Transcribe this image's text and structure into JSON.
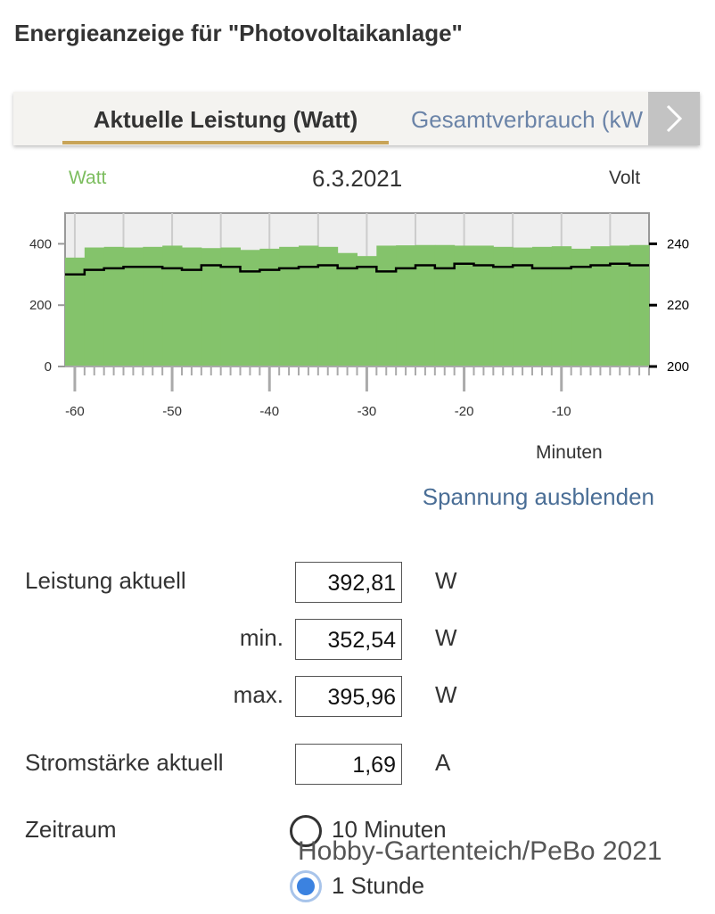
{
  "page_title": "Energieanzeige für \"Photovoltaikanlage\"",
  "tabs": [
    {
      "label": "Aktuelle Leistung (Watt)",
      "active": true
    },
    {
      "label": "Gesamtverbrauch (kW",
      "active": false
    }
  ],
  "tab_arrow_icon": "chevron-right-icon",
  "chart_header": {
    "left_label": "Watt",
    "date": "6.3.2021",
    "right_label": "Volt"
  },
  "chart_data": {
    "type": "bar",
    "x": [
      -60,
      -58,
      -56,
      -54,
      -52,
      -50,
      -48,
      -46,
      -44,
      -42,
      -40,
      -38,
      -36,
      -34,
      -32,
      -30,
      -28,
      -26,
      -24,
      -22,
      -20,
      -18,
      -16,
      -14,
      -12,
      -10,
      -8,
      -6,
      -4,
      -2
    ],
    "xlabel": "Minuten",
    "xlim": [
      -61,
      -1
    ],
    "xticks": [
      -60,
      -50,
      -40,
      -30,
      -20,
      -10
    ],
    "series": [
      {
        "name": "Watt",
        "axis": "left",
        "type": "bar",
        "values": [
          355,
          388,
          390,
          388,
          390,
          394,
          388,
          386,
          388,
          380,
          384,
          390,
          394,
          390,
          370,
          360,
          394,
          395,
          396,
          396,
          394,
          394,
          390,
          388,
          390,
          392,
          384,
          392,
          394,
          396
        ],
        "color": "#84c36b"
      },
      {
        "name": "Volt",
        "axis": "right",
        "type": "step",
        "values": [
          230.0,
          231.5,
          232.0,
          232.5,
          232.5,
          232.0,
          231.5,
          233.0,
          232.5,
          231.0,
          231.5,
          232.0,
          232.5,
          233.0,
          232.0,
          232.5,
          231.0,
          232.0,
          233.0,
          232.0,
          233.5,
          233.0,
          232.5,
          233.0,
          232.0,
          232.0,
          232.5,
          233.0,
          233.5,
          233.0
        ],
        "color": "#000000"
      }
    ],
    "y_left": {
      "lim": [
        0,
        500
      ],
      "ticks": [
        0,
        200,
        400
      ]
    },
    "y_right": {
      "lim": [
        200,
        250
      ],
      "ticks": [
        200,
        220,
        240
      ]
    },
    "grid": "vertical",
    "legend": "none"
  },
  "toggle_link": "Spannung ausblenden",
  "readings": [
    {
      "label": "Leistung aktuell",
      "value": "392,81",
      "unit": "W"
    },
    {
      "label": "min.",
      "value": "352,54",
      "unit": "W"
    },
    {
      "label": "max.",
      "value": "395,96",
      "unit": "W"
    },
    {
      "label": "Stromstärke aktuell",
      "value": "1,69",
      "unit": "A"
    }
  ],
  "zeitraum": {
    "label": "Zeitraum",
    "options": [
      {
        "label": "10 Minuten",
        "selected": false
      },
      {
        "label": "1 Stunde",
        "selected": true
      }
    ]
  },
  "watermark": "Hobby-Gartenteich/PeBo 2021"
}
